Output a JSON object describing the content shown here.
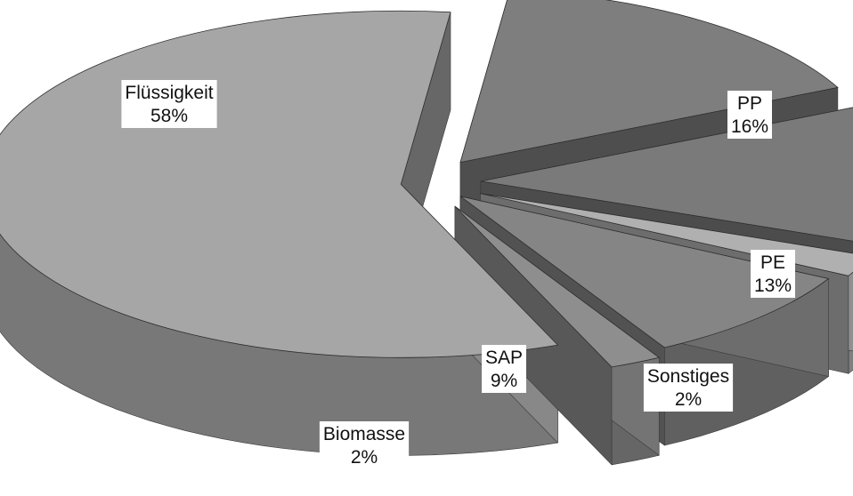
{
  "chart_data": {
    "type": "pie",
    "style": "3d-exploded",
    "title": "",
    "slices": [
      {
        "label": "Flüssigkeit",
        "value": 58,
        "value_label": "58%",
        "color": "#a6a6a6"
      },
      {
        "label": "PP",
        "value": 16,
        "value_label": "16%",
        "color": "#7e7e7e"
      },
      {
        "label": "PE",
        "value": 13,
        "value_label": "13%",
        "color": "#7a7a7a"
      },
      {
        "label": "Sonstiges",
        "value": 2,
        "value_label": "2%",
        "color": "#b0b0b0"
      },
      {
        "label": "SAP",
        "value": 9,
        "value_label": "9%",
        "color": "#858585"
      },
      {
        "label": "Biomasse",
        "value": 2,
        "value_label": "2%",
        "color": "#8e8e8e"
      }
    ]
  }
}
